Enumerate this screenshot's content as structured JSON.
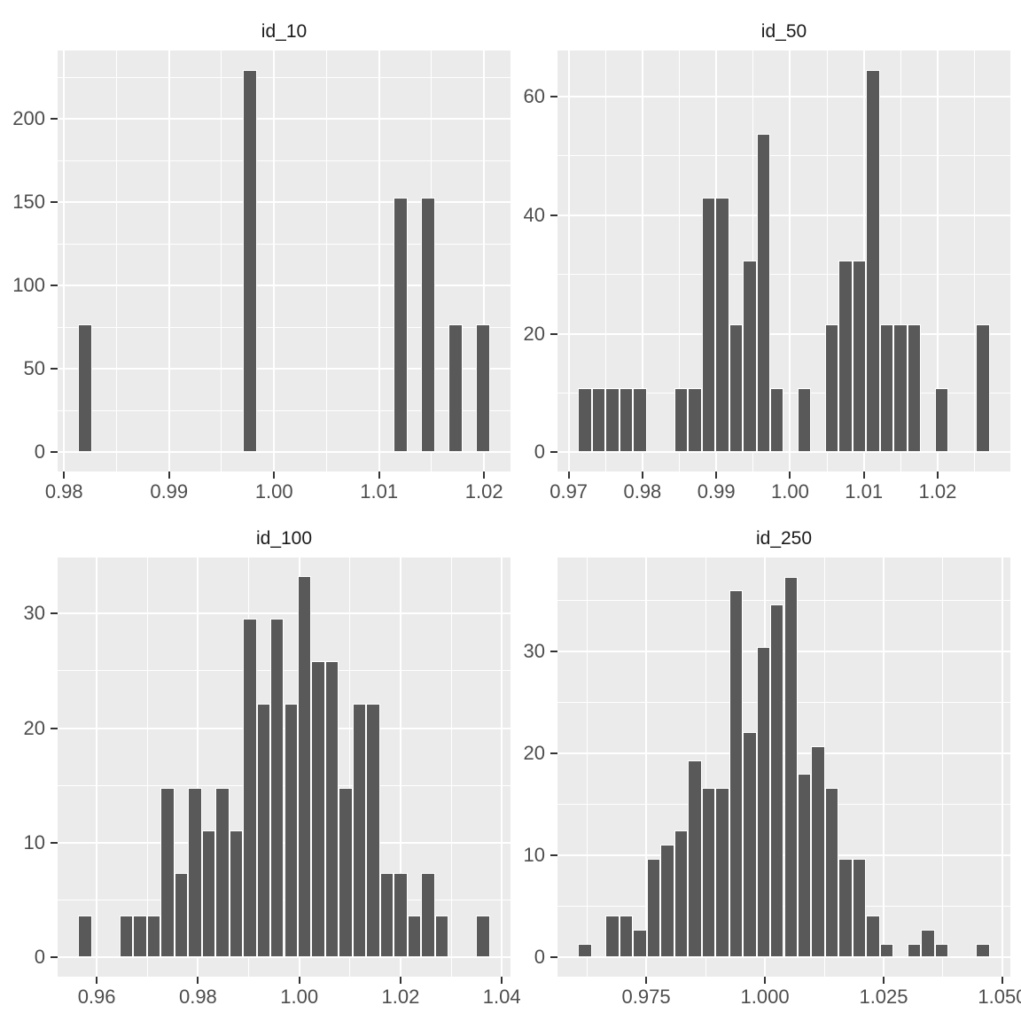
{
  "figure": {
    "kind": "faceted-histogram-grid",
    "facet_titles": [
      "id_10",
      "id_50",
      "id_100",
      "id_250"
    ]
  },
  "colors": {
    "page_bg": "#FFFFFF",
    "panel_bg": "#EBEBEB",
    "strip_bg": "#D9D9D9",
    "strip_text": "#1A1A1A",
    "bar_fill": "#595959",
    "bar_stroke": "#FFFFFF",
    "grid": "#FFFFFF",
    "axis_text": "#4D4D4D",
    "tick_mark": "#333333"
  },
  "chart_data": [
    {
      "type": "bar",
      "subtype": "histogram",
      "title": "id_10",
      "n_obs": 10,
      "bin_start_center": 0.982,
      "binwidth": 0.0013069,
      "bin_counts": [
        1,
        0,
        0,
        0,
        0,
        0,
        0,
        0,
        0,
        0,
        0,
        0,
        3,
        0,
        0,
        0,
        0,
        0,
        0,
        0,
        0,
        0,
        0,
        2,
        0,
        2,
        0,
        1,
        0,
        1
      ],
      "density_per_count": 76.52,
      "x_axis": {
        "range": [
          0.979387,
          1.022513
        ],
        "major_ticks": [
          0.98,
          0.99,
          1.0,
          1.01,
          1.02
        ],
        "tick_labels": [
          "0.98",
          "0.99",
          "1.00",
          "1.01",
          "1.02"
        ],
        "minor_ticks": [
          0.985,
          0.995,
          1.005,
          1.015
        ]
      },
      "y_axis": {
        "range": [
          -11.478,
          241.04
        ],
        "major_ticks": [
          0,
          50,
          100,
          150,
          200
        ],
        "tick_labels": [
          "0",
          "50",
          "100",
          "150",
          "200"
        ],
        "minor_ticks": [
          25,
          75,
          125,
          175,
          225
        ]
      }
    },
    {
      "type": "bar",
      "subtype": "histogram",
      "title": "id_50",
      "n_obs": 50,
      "bin_start_center": 0.9722,
      "binwidth": 0.00186,
      "bin_counts": [
        1,
        1,
        1,
        1,
        1,
        0,
        0,
        1,
        1,
        4,
        4,
        2,
        3,
        5,
        1,
        0,
        1,
        0,
        2,
        3,
        3,
        6,
        2,
        2,
        2,
        0,
        1,
        0,
        0,
        2
      ],
      "density_per_count": 10.753,
      "x_axis": {
        "range": [
          0.96848,
          1.02986
        ],
        "major_ticks": [
          0.97,
          0.98,
          0.99,
          1.0,
          1.01,
          1.02
        ],
        "tick_labels": [
          "0.97",
          "0.98",
          "0.99",
          "1.00",
          "1.01",
          "1.02"
        ],
        "minor_ticks": [
          0.975,
          0.985,
          0.995,
          1.005,
          1.015,
          1.025
        ]
      },
      "y_axis": {
        "range": [
          -3.226,
          67.74
        ],
        "major_ticks": [
          0,
          20,
          40,
          60
        ],
        "tick_labels": [
          "0",
          "20",
          "40",
          "60"
        ],
        "minor_ticks": [
          10,
          30,
          50
        ]
      }
    },
    {
      "type": "bar",
      "subtype": "histogram",
      "title": "id_100",
      "n_obs": 100,
      "bin_start_center": 0.9577,
      "binwidth": 0.00271,
      "bin_counts": [
        1,
        0,
        0,
        1,
        1,
        1,
        4,
        2,
        4,
        3,
        4,
        3,
        8,
        6,
        8,
        6,
        9,
        7,
        7,
        4,
        6,
        6,
        2,
        2,
        1,
        2,
        1,
        0,
        0,
        1
      ],
      "density_per_count": 3.69,
      "x_axis": {
        "range": [
          0.95228,
          1.04171
        ],
        "major_ticks": [
          0.96,
          0.98,
          1.0,
          1.02,
          1.04
        ],
        "tick_labels": [
          "0.96",
          "0.98",
          "1.00",
          "1.02",
          "1.04"
        ],
        "minor_ticks": [
          0.97,
          0.99,
          1.01,
          1.03
        ]
      },
      "y_axis": {
        "range": [
          -1.661,
          34.87
        ],
        "major_ticks": [
          0,
          10,
          20,
          30
        ],
        "tick_labels": [
          "0",
          "10",
          "20",
          "30"
        ],
        "minor_ticks": [
          5,
          15,
          25
        ]
      }
    },
    {
      "type": "bar",
      "subtype": "histogram",
      "title": "id_250",
      "n_obs": 250,
      "bin_start_center": 0.9621,
      "binwidth": 0.00289,
      "bin_counts": [
        1,
        0,
        3,
        3,
        2,
        7,
        8,
        9,
        14,
        12,
        12,
        26,
        16,
        22,
        25,
        27,
        13,
        15,
        12,
        7,
        7,
        3,
        1,
        0,
        1,
        2,
        1,
        0,
        0,
        1
      ],
      "density_per_count": 1.3841,
      "x_axis": {
        "range": [
          0.95632,
          1.05169
        ],
        "major_ticks": [
          0.975,
          1.0,
          1.025,
          1.05
        ],
        "tick_labels": [
          "0.975",
          "1.000",
          "1.025",
          "1.050"
        ],
        "minor_ticks": [
          0.9625,
          0.9875,
          1.0125,
          1.0375
        ]
      },
      "y_axis": {
        "range": [
          -1.869,
          39.24
        ],
        "major_ticks": [
          0,
          10,
          20,
          30
        ],
        "tick_labels": [
          "0",
          "10",
          "20",
          "30"
        ],
        "minor_ticks": [
          5,
          15,
          25,
          35
        ]
      }
    }
  ]
}
